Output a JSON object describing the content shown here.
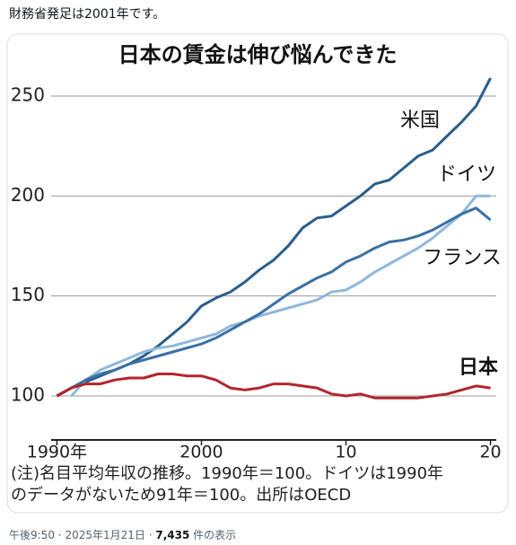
{
  "post_text": "財務省発足は2001年です。",
  "chart_data": {
    "type": "line",
    "title": "日本の賃金は伸び悩んできた",
    "x": [
      1990,
      1991,
      1992,
      1993,
      1994,
      1995,
      1996,
      1997,
      1998,
      1999,
      2000,
      2001,
      2002,
      2003,
      2004,
      2005,
      2006,
      2007,
      2008,
      2009,
      2010,
      2011,
      2012,
      2013,
      2014,
      2015,
      2016,
      2017,
      2018,
      2019,
      2020
    ],
    "series": [
      {
        "name": "米国",
        "color": "#2b5d8c",
        "values": [
          100,
          104,
          107,
          110,
          113,
          116,
          120,
          125,
          131,
          137,
          145,
          149,
          152,
          157,
          163,
          168,
          175,
          184,
          189,
          190,
          195,
          200,
          206,
          208,
          214,
          220,
          223,
          230,
          237,
          245,
          259
        ]
      },
      {
        "name": "ドイツ",
        "color": "#8fb8dd",
        "values": [
          null,
          100,
          108,
          113,
          116,
          119,
          122,
          124,
          125,
          127,
          129,
          131,
          135,
          137,
          140,
          142,
          144,
          146,
          148,
          152,
          153,
          157,
          162,
          166,
          170,
          174,
          179,
          185,
          191,
          200,
          200
        ]
      },
      {
        "name": "フランス",
        "color": "#3a70a6",
        "values": [
          100,
          104,
          108,
          111,
          113,
          116,
          118,
          120,
          122,
          124,
          126,
          129,
          133,
          137,
          141,
          146,
          151,
          155,
          159,
          162,
          167,
          170,
          174,
          177,
          178,
          180,
          183,
          187,
          191,
          194,
          188
        ]
      },
      {
        "name": "日本",
        "color": "#b3262d",
        "values": [
          100,
          104,
          106,
          106,
          108,
          109,
          109,
          111,
          111,
          110,
          110,
          108,
          104,
          103,
          104,
          106,
          106,
          105,
          104,
          101,
          100,
          101,
          99,
          99,
          99,
          99,
          100,
          101,
          103,
          105,
          104
        ]
      }
    ],
    "xlim": [
      1989.6,
      2020.4
    ],
    "xticks": [
      {
        "value": 1990,
        "label": "1990年"
      },
      2000,
      {
        "value": 2010,
        "label": "10"
      },
      {
        "value": 2020,
        "label": "20"
      }
    ],
    "ylim": [
      78,
      263
    ],
    "yticks": [
      100,
      150,
      200,
      250
    ],
    "grid": true,
    "note": [
      "(注)名目平均年収の推移。1990年＝100。ドイツは1990年",
      "のデータがないため91年＝100。出所はOECD"
    ]
  },
  "footer": {
    "time": "午後9:50",
    "separator": "·",
    "date": "2025年1月21日",
    "views": "7,435",
    "views_label": "件の表示"
  }
}
